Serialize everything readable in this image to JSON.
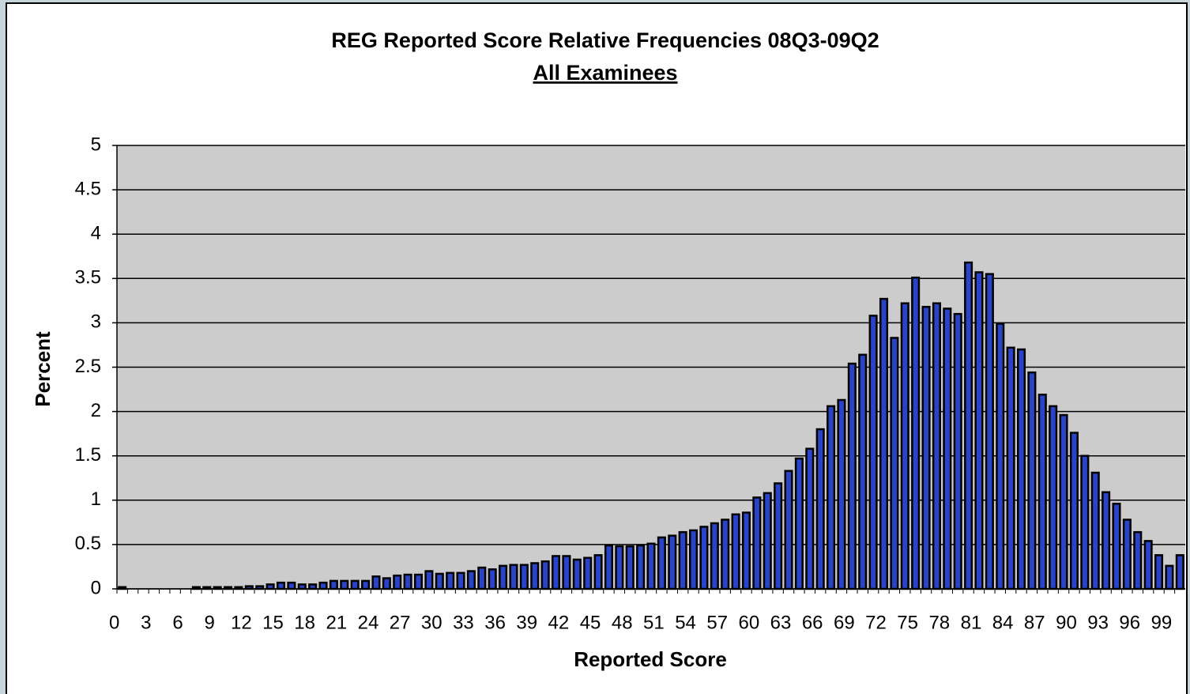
{
  "chart_data": {
    "type": "bar",
    "title": "REG Reported Score Relative Frequencies  08Q3-09Q2",
    "subtitle": "All Examinees",
    "x_label": "Reported Score",
    "y_label": "Percent",
    "categories": [
      "0",
      null,
      null,
      "3",
      null,
      null,
      "6",
      null,
      null,
      "9",
      null,
      null,
      "12",
      null,
      null,
      "15",
      null,
      null,
      "18",
      null,
      null,
      "21",
      null,
      null,
      "24",
      null,
      null,
      "27",
      null,
      null,
      "30",
      null,
      null,
      "33",
      null,
      null,
      "36",
      null,
      null,
      "39",
      null,
      null,
      "42",
      null,
      null,
      "45",
      null,
      null,
      "48",
      null,
      null,
      "51",
      null,
      null,
      "54",
      null,
      null,
      "57",
      null,
      null,
      "60",
      null,
      null,
      "63",
      null,
      null,
      "66",
      null,
      null,
      "69",
      null,
      null,
      "72",
      null,
      null,
      "75",
      null,
      null,
      "78",
      null,
      null,
      "81",
      null,
      null,
      "84",
      null,
      null,
      "87",
      null,
      null,
      "90",
      null,
      null,
      "93",
      null,
      null,
      "96",
      null,
      null,
      "99",
      null
    ],
    "values": [
      0.02,
      0,
      0,
      0,
      0,
      0,
      0,
      0.02,
      0.02,
      0.02,
      0.02,
      0.02,
      0.03,
      0.03,
      0.05,
      0.07,
      0.07,
      0.05,
      0.05,
      0.07,
      0.09,
      0.09,
      0.09,
      0.09,
      0.14,
      0.12,
      0.15,
      0.16,
      0.16,
      0.2,
      0.17,
      0.18,
      0.18,
      0.2,
      0.24,
      0.22,
      0.26,
      0.27,
      0.27,
      0.29,
      0.31,
      0.37,
      0.37,
      0.33,
      0.35,
      0.38,
      0.49,
      0.48,
      0.48,
      0.49,
      0.51,
      0.58,
      0.6,
      0.64,
      0.66,
      0.7,
      0.74,
      0.78,
      0.84,
      0.86,
      1.03,
      1.08,
      1.19,
      1.33,
      1.47,
      1.58,
      1.8,
      2.06,
      2.13,
      2.54,
      2.64,
      3.08,
      3.27,
      2.83,
      3.22,
      3.51,
      3.18,
      3.22,
      3.16,
      3.1,
      3.68,
      3.57,
      3.55,
      2.99,
      2.72,
      2.7,
      2.44,
      2.19,
      2.06,
      1.96,
      1.76,
      1.5,
      1.31,
      1.09,
      0.96,
      0.78,
      0.64,
      0.54,
      0.38,
      0.26,
      0.38
    ],
    "color": "#2a44c8",
    "ylim": [
      0,
      5
    ],
    "yticks": [
      0,
      0.5,
      1,
      1.5,
      2,
      2.5,
      3,
      3.5,
      4,
      4.5,
      5
    ],
    "grid": true
  }
}
